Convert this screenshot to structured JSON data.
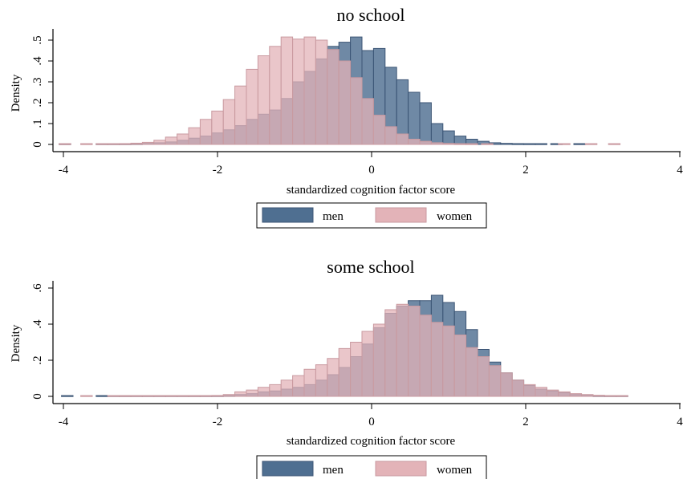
{
  "chart_data": [
    {
      "type": "bar",
      "title": "no school",
      "xlabel": "standardized cognition factor score",
      "ylabel": "Density",
      "xlim": [
        -4,
        4
      ],
      "ylim": [
        0,
        0.52
      ],
      "x_ticks": [
        "-4",
        "-2",
        "0",
        "2",
        "4"
      ],
      "y_ticks": [
        "0",
        ".1",
        ".2",
        ".3",
        ".4",
        ".5"
      ],
      "grid": false,
      "legend_position": "bottom",
      "bin_width": 0.15,
      "colors": {
        "men": "#4f6f91",
        "women": "#e3b3b8"
      },
      "series": [
        {
          "name": "men",
          "points": [
            [
              -3.98,
              0.002
            ],
            [
              -3.5,
              0.002
            ],
            [
              -3.35,
              0.003
            ],
            [
              -3.2,
              0.003
            ],
            [
              -3.05,
              0.004
            ],
            [
              -2.9,
              0.005
            ],
            [
              -2.75,
              0.008
            ],
            [
              -2.6,
              0.012
            ],
            [
              -2.45,
              0.02
            ],
            [
              -2.3,
              0.03
            ],
            [
              -2.15,
              0.04
            ],
            [
              -2.0,
              0.055
            ],
            [
              -1.85,
              0.07
            ],
            [
              -1.7,
              0.09
            ],
            [
              -1.55,
              0.12
            ],
            [
              -1.4,
              0.145
            ],
            [
              -1.25,
              0.165
            ],
            [
              -1.1,
              0.22
            ],
            [
              -0.95,
              0.3
            ],
            [
              -0.8,
              0.35
            ],
            [
              -0.65,
              0.41
            ],
            [
              -0.5,
              0.47
            ],
            [
              -0.35,
              0.49
            ],
            [
              -0.2,
              0.515
            ],
            [
              -0.05,
              0.45
            ],
            [
              0.1,
              0.46
            ],
            [
              0.25,
              0.37
            ],
            [
              0.4,
              0.31
            ],
            [
              0.55,
              0.25
            ],
            [
              0.7,
              0.2
            ],
            [
              0.85,
              0.1
            ],
            [
              1.0,
              0.065
            ],
            [
              1.15,
              0.04
            ],
            [
              1.3,
              0.025
            ],
            [
              1.45,
              0.015
            ],
            [
              1.6,
              0.008
            ],
            [
              1.75,
              0.005
            ],
            [
              1.9,
              0.004
            ],
            [
              2.05,
              0.003
            ],
            [
              2.2,
              0.003
            ],
            [
              2.4,
              0.002
            ],
            [
              2.7,
              0.002
            ]
          ]
        },
        {
          "name": "women",
          "points": [
            [
              -3.98,
              0.002
            ],
            [
              -3.7,
              0.002
            ],
            [
              -3.5,
              0.002
            ],
            [
              -3.35,
              0.003
            ],
            [
              -3.2,
              0.004
            ],
            [
              -3.05,
              0.006
            ],
            [
              -2.9,
              0.01
            ],
            [
              -2.75,
              0.02
            ],
            [
              -2.6,
              0.035
            ],
            [
              -2.45,
              0.05
            ],
            [
              -2.3,
              0.08
            ],
            [
              -2.15,
              0.12
            ],
            [
              -2.0,
              0.16
            ],
            [
              -1.85,
              0.215
            ],
            [
              -1.7,
              0.28
            ],
            [
              -1.55,
              0.36
            ],
            [
              -1.4,
              0.425
            ],
            [
              -1.25,
              0.47
            ],
            [
              -1.1,
              0.515
            ],
            [
              -0.95,
              0.505
            ],
            [
              -0.8,
              0.515
            ],
            [
              -0.65,
              0.5
            ],
            [
              -0.5,
              0.455
            ],
            [
              -0.35,
              0.4
            ],
            [
              -0.2,
              0.32
            ],
            [
              -0.05,
              0.22
            ],
            [
              0.1,
              0.14
            ],
            [
              0.25,
              0.085
            ],
            [
              0.4,
              0.05
            ],
            [
              0.55,
              0.025
            ],
            [
              0.7,
              0.015
            ],
            [
              0.85,
              0.008
            ],
            [
              1.0,
              0.005
            ],
            [
              1.15,
              0.004
            ],
            [
              1.3,
              0.003
            ],
            [
              1.5,
              0.002
            ],
            [
              2.5,
              0.002
            ],
            [
              2.85,
              0.002
            ],
            [
              3.15,
              0.002
            ]
          ]
        }
      ]
    },
    {
      "type": "bar",
      "title": "some school",
      "xlabel": "standardized cognition factor score",
      "ylabel": "Density",
      "xlim": [
        -4,
        4
      ],
      "ylim": [
        0,
        0.62
      ],
      "x_ticks": [
        "-4",
        "-2",
        "0",
        "2",
        "4"
      ],
      "y_ticks": [
        "0",
        ".2",
        ".4",
        ".6"
      ],
      "grid": false,
      "legend_position": "bottom",
      "bin_width": 0.15,
      "colors": {
        "men": "#4f6f91",
        "women": "#e3b3b8"
      },
      "series": [
        {
          "name": "men",
          "points": [
            [
              -3.95,
              0.002
            ],
            [
              -3.5,
              0.002
            ],
            [
              -3.35,
              0.002
            ],
            [
              -3.2,
              0.002
            ],
            [
              -3.05,
              0.002
            ],
            [
              -2.9,
              0.002
            ],
            [
              -2.75,
              0.002
            ],
            [
              -2.6,
              0.002
            ],
            [
              -2.45,
              0.002
            ],
            [
              -2.3,
              0.002
            ],
            [
              -2.15,
              0.002
            ],
            [
              -2.0,
              0.003
            ],
            [
              -1.85,
              0.005
            ],
            [
              -1.7,
              0.01
            ],
            [
              -1.55,
              0.015
            ],
            [
              -1.4,
              0.025
            ],
            [
              -1.25,
              0.03
            ],
            [
              -1.1,
              0.04
            ],
            [
              -0.95,
              0.05
            ],
            [
              -0.8,
              0.065
            ],
            [
              -0.65,
              0.09
            ],
            [
              -0.5,
              0.12
            ],
            [
              -0.35,
              0.16
            ],
            [
              -0.2,
              0.22
            ],
            [
              -0.05,
              0.29
            ],
            [
              0.1,
              0.38
            ],
            [
              0.25,
              0.46
            ],
            [
              0.4,
              0.5
            ],
            [
              0.55,
              0.53
            ],
            [
              0.7,
              0.53
            ],
            [
              0.85,
              0.56
            ],
            [
              1.0,
              0.52
            ],
            [
              1.15,
              0.47
            ],
            [
              1.3,
              0.37
            ],
            [
              1.45,
              0.26
            ],
            [
              1.6,
              0.19
            ],
            [
              1.75,
              0.13
            ],
            [
              1.9,
              0.09
            ],
            [
              2.05,
              0.06
            ],
            [
              2.2,
              0.04
            ],
            [
              2.35,
              0.03
            ],
            [
              2.5,
              0.02
            ],
            [
              2.65,
              0.01
            ],
            [
              2.8,
              0.006
            ],
            [
              2.95,
              0.004
            ],
            [
              3.1,
              0.003
            ],
            [
              3.25,
              0.003
            ]
          ]
        },
        {
          "name": "women",
          "points": [
            [
              -3.7,
              0.002
            ],
            [
              -3.35,
              0.002
            ],
            [
              -3.2,
              0.002
            ],
            [
              -3.05,
              0.002
            ],
            [
              -2.9,
              0.002
            ],
            [
              -2.75,
              0.002
            ],
            [
              -2.6,
              0.002
            ],
            [
              -2.45,
              0.002
            ],
            [
              -2.3,
              0.002
            ],
            [
              -2.15,
              0.003
            ],
            [
              -2.0,
              0.005
            ],
            [
              -1.85,
              0.01
            ],
            [
              -1.7,
              0.025
            ],
            [
              -1.55,
              0.035
            ],
            [
              -1.4,
              0.05
            ],
            [
              -1.25,
              0.065
            ],
            [
              -1.1,
              0.09
            ],
            [
              -0.95,
              0.115
            ],
            [
              -0.8,
              0.15
            ],
            [
              -0.65,
              0.175
            ],
            [
              -0.5,
              0.21
            ],
            [
              -0.35,
              0.265
            ],
            [
              -0.2,
              0.3
            ],
            [
              -0.05,
              0.36
            ],
            [
              0.1,
              0.4
            ],
            [
              0.25,
              0.48
            ],
            [
              0.4,
              0.51
            ],
            [
              0.55,
              0.5
            ],
            [
              0.7,
              0.45
            ],
            [
              0.85,
              0.41
            ],
            [
              1.0,
              0.39
            ],
            [
              1.15,
              0.34
            ],
            [
              1.3,
              0.27
            ],
            [
              1.45,
              0.22
            ],
            [
              1.6,
              0.17
            ],
            [
              1.75,
              0.13
            ],
            [
              1.9,
              0.09
            ],
            [
              2.05,
              0.065
            ],
            [
              2.2,
              0.05
            ],
            [
              2.35,
              0.035
            ],
            [
              2.5,
              0.025
            ],
            [
              2.65,
              0.015
            ],
            [
              2.8,
              0.01
            ],
            [
              2.95,
              0.006
            ],
            [
              3.1,
              0.004
            ],
            [
              3.25,
              0.003
            ]
          ]
        }
      ]
    }
  ]
}
